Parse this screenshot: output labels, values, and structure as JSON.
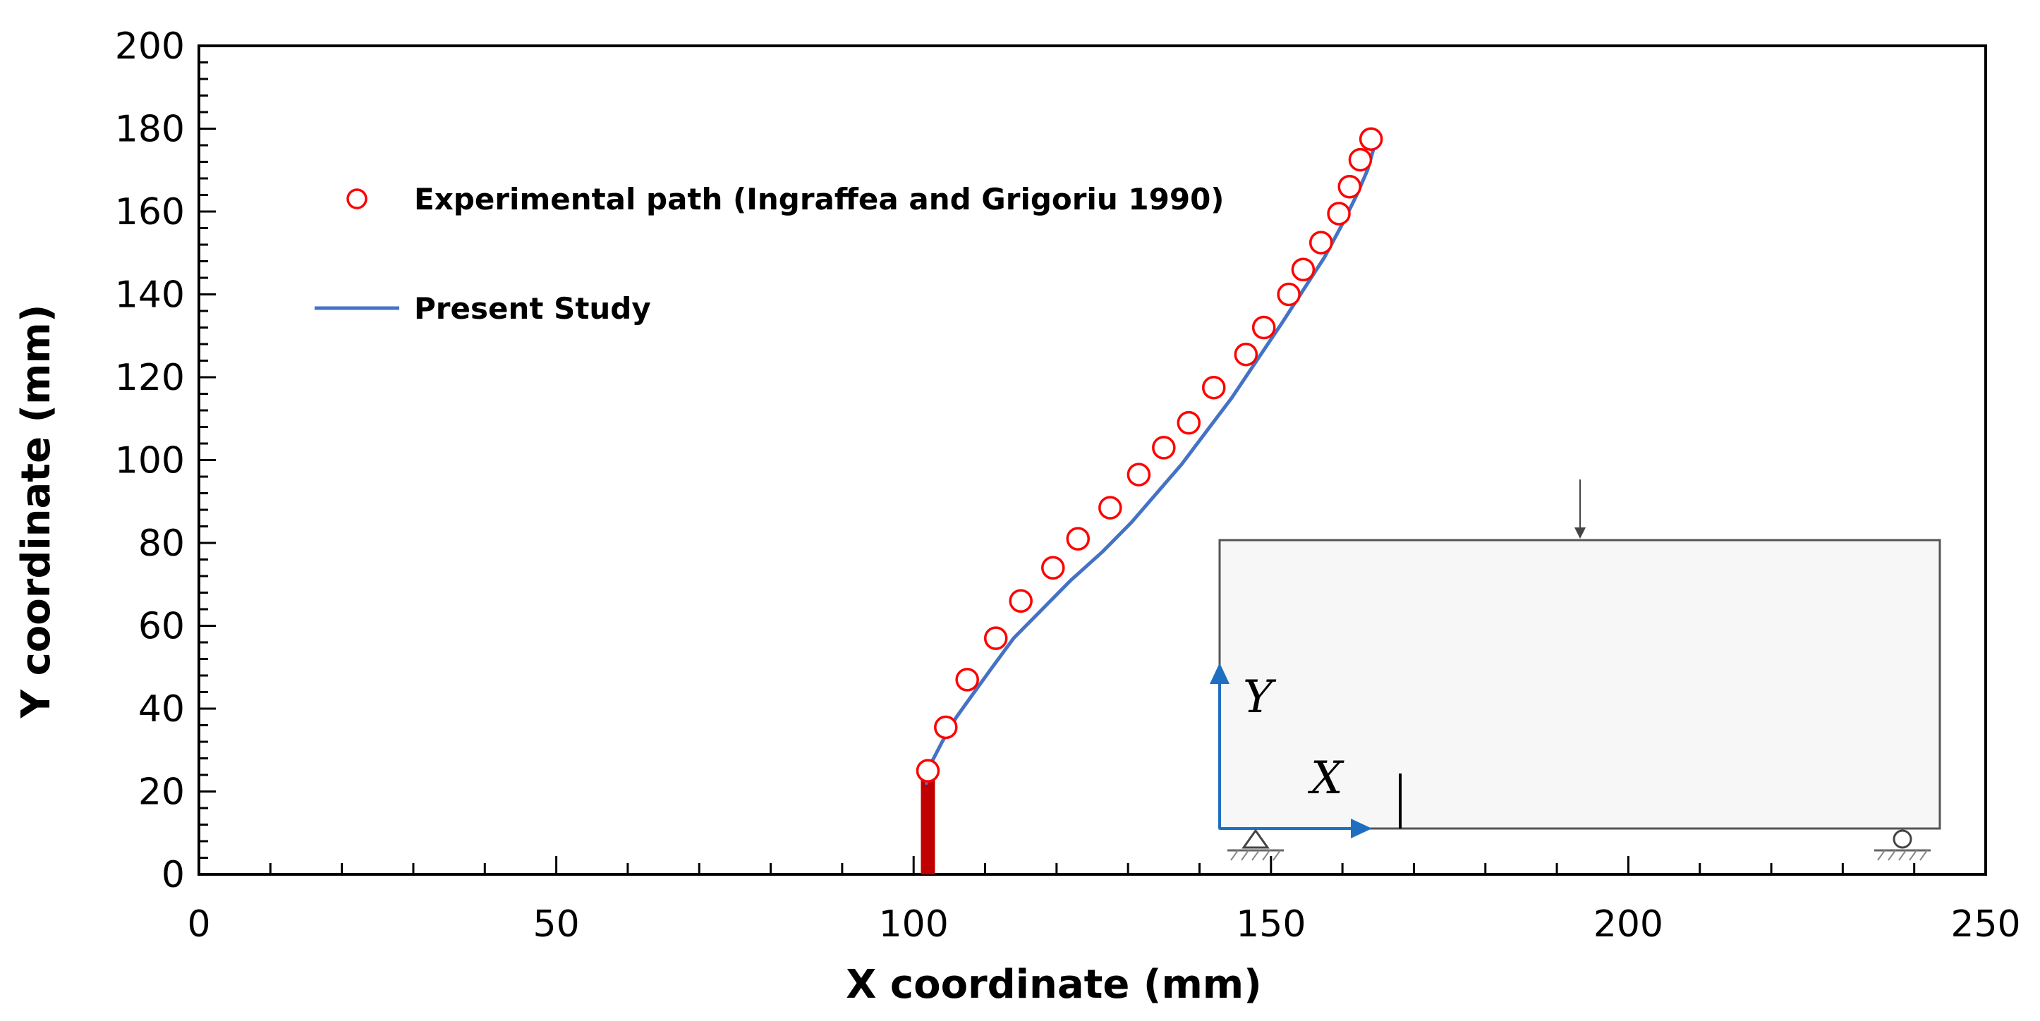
{
  "chart_data": {
    "type": "scatter",
    "title": "",
    "xlabel": "X coordinate (mm)",
    "ylabel": "Y coordinate (mm)",
    "xlim": [
      0,
      250
    ],
    "ylim": [
      0,
      200
    ],
    "xticks": [
      0,
      50,
      100,
      150,
      200,
      250
    ],
    "yticks": [
      0,
      20,
      40,
      60,
      80,
      100,
      120,
      140,
      160,
      180,
      200
    ],
    "grid": false,
    "legend_position": "top-left",
    "series": [
      {
        "name": "Experimental path (Ingraffea and Grigoriu 1990)",
        "kind": "scatter",
        "marker": "open-circle",
        "color": "#ff0000",
        "points": [
          [
            102.0,
            25
          ],
          [
            104.5,
            35.5
          ],
          [
            107.5,
            47
          ],
          [
            111.5,
            57
          ],
          [
            115.0,
            66
          ],
          [
            119.5,
            74
          ],
          [
            123.0,
            81
          ],
          [
            127.5,
            88.5
          ],
          [
            131.5,
            96.5
          ],
          [
            135.0,
            103
          ],
          [
            138.5,
            109
          ],
          [
            142.0,
            117.5
          ],
          [
            146.5,
            125.5
          ],
          [
            149.0,
            132
          ],
          [
            152.5,
            140
          ],
          [
            154.5,
            146
          ],
          [
            157.0,
            152.5
          ],
          [
            159.5,
            159.5
          ],
          [
            161.0,
            166
          ],
          [
            162.5,
            172.5
          ],
          [
            164.0,
            177.5
          ]
        ]
      },
      {
        "name": "Present Study",
        "kind": "line",
        "color": "#4472c4",
        "points": [
          [
            101.8,
            22
          ],
          [
            102.5,
            27
          ],
          [
            104.0,
            32
          ],
          [
            106.0,
            38
          ],
          [
            108.5,
            44
          ],
          [
            111.0,
            50
          ],
          [
            114.0,
            57
          ],
          [
            118.0,
            64
          ],
          [
            122.0,
            71
          ],
          [
            126.5,
            78
          ],
          [
            130.5,
            85
          ],
          [
            134.0,
            92
          ],
          [
            137.5,
            99
          ],
          [
            141.0,
            107
          ],
          [
            144.5,
            115
          ],
          [
            148.0,
            124
          ],
          [
            151.5,
            133
          ],
          [
            154.5,
            141
          ],
          [
            157.5,
            149
          ],
          [
            160.0,
            157
          ],
          [
            162.0,
            164
          ],
          [
            163.5,
            170
          ],
          [
            164.5,
            176
          ]
        ]
      }
    ],
    "initial_crack": {
      "x": 102,
      "y0": 0,
      "y1": 23,
      "color": "#c00000"
    },
    "inset": {
      "labels": {
        "y_axis": "Y",
        "x_axis": "X"
      },
      "axis_color": "#1f6fc0"
    }
  }
}
